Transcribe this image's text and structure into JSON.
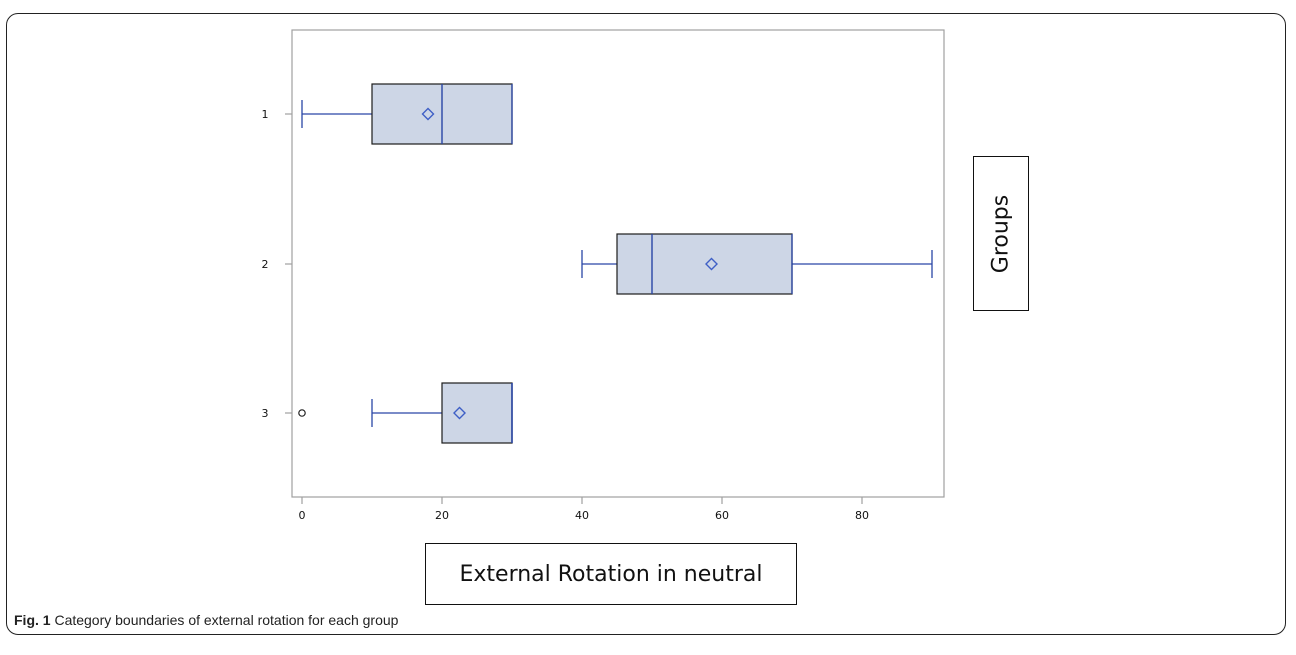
{
  "figure": {
    "caption_label": "Fig. 1",
    "caption_text": "Category boundaries of external rotation for each group"
  },
  "chart_data": {
    "type": "boxplot",
    "orientation": "horizontal",
    "xlabel": "External Rotation in neutral",
    "ylabel": "Groups",
    "xlim": [
      -1,
      92
    ],
    "xticks": [
      0,
      20,
      40,
      60,
      80
    ],
    "categories": [
      "1",
      "2",
      "3"
    ],
    "boxes": [
      {
        "group": "1",
        "whisker_low": 0,
        "q1": 10,
        "median": 20,
        "q3": 30,
        "whisker_high": 30,
        "mean": 18,
        "outliers": []
      },
      {
        "group": "2",
        "whisker_low": 40,
        "q1": 45,
        "median": 50,
        "q3": 70,
        "whisker_high": 90,
        "mean": 58.5,
        "outliers": []
      },
      {
        "group": "3",
        "whisker_low": 10,
        "q1": 20,
        "median": 30,
        "q3": 30,
        "whisker_high": 30,
        "mean": 22.5,
        "outliers": [
          0
        ]
      }
    ],
    "colors": {
      "box_fill": "#cdd6e6",
      "box_edge": "#1c1c1c",
      "whisker": "#2a46a6",
      "mean_marker": "#3e5fc6",
      "axis": "#a0a0a0"
    },
    "grid": false,
    "legend": "none"
  }
}
